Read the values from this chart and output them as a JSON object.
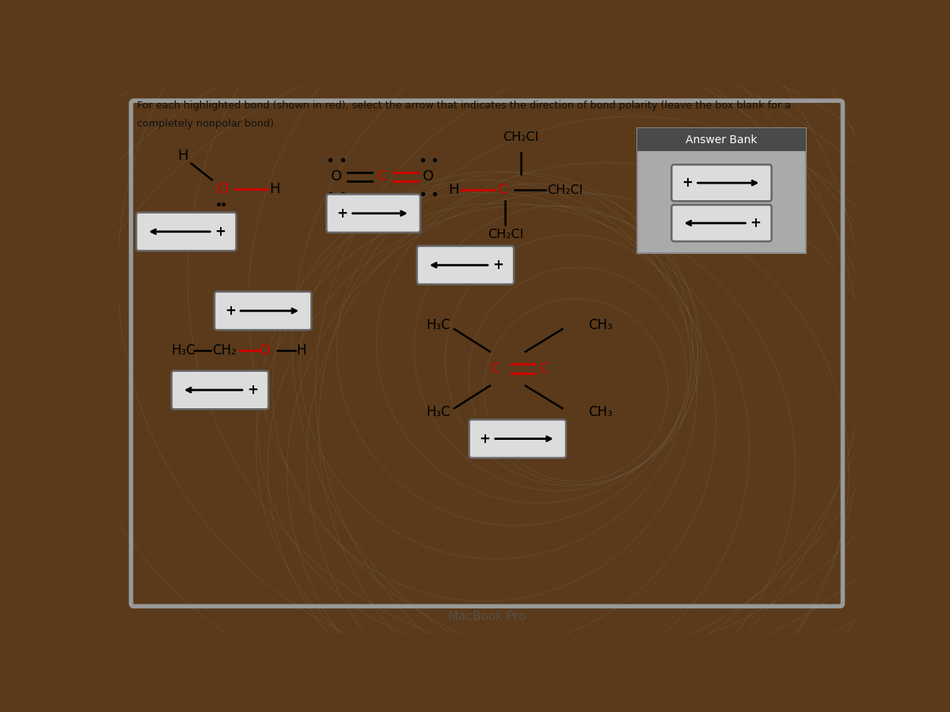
{
  "title_line1": "For each highlighted bond (shown in red), select the arrow that indicates the direction of bond polarity (leave the box blank for a",
  "title_line2": "completely nonpolar bond).",
  "text_color": "#111111",
  "red_color": "#cc0000",
  "answer_bank_label": "Answer Bank",
  "macbook_label": "MacBook Pro",
  "bg_outer": "#5a3a1a",
  "bg_screen": "#b0b0b0",
  "bg_content": "#c2c2c2",
  "box_face": "#dcdcdc",
  "box_edge": "#666666",
  "answer_bank_header_bg": "#4a4a4a",
  "answer_bank_body_bg": "#aaaaaa"
}
